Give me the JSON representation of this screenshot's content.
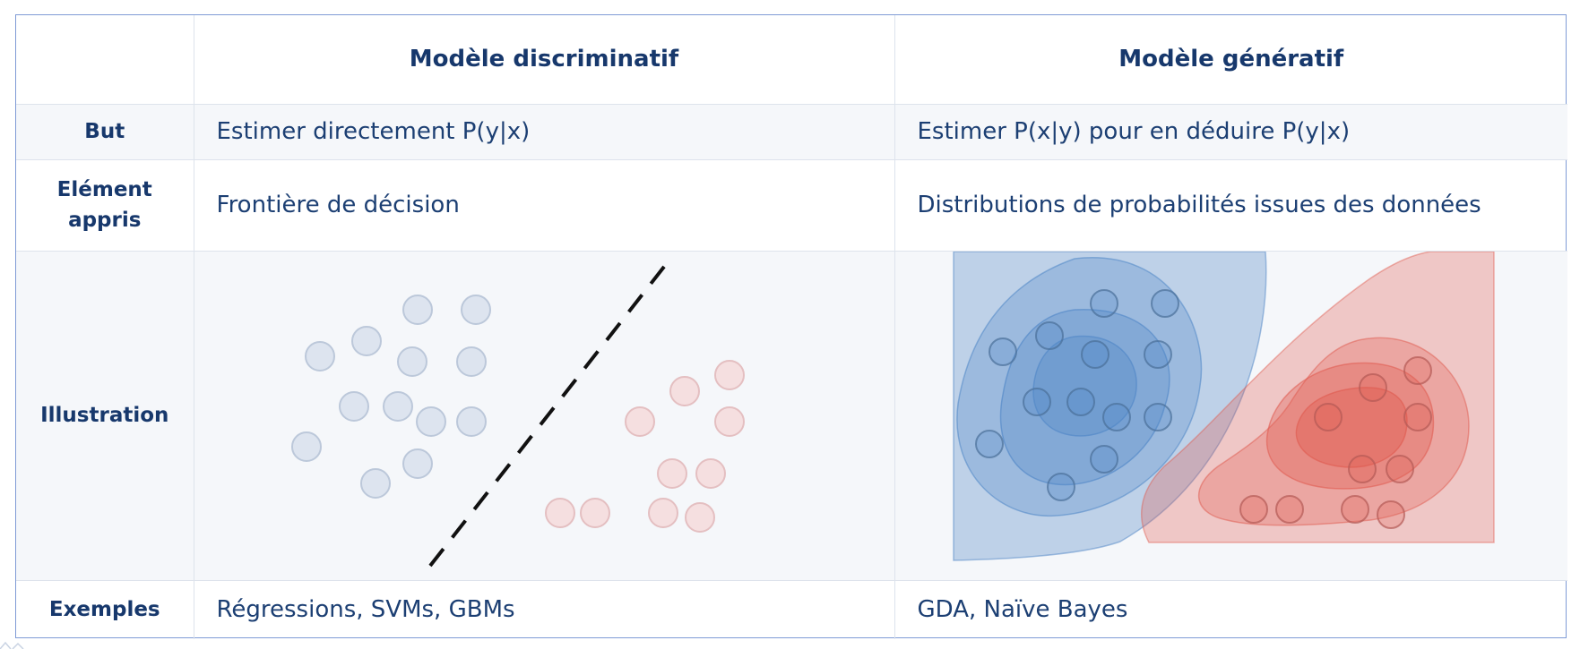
{
  "table": {
    "header": {
      "corner": "",
      "discriminative": "Modèle discriminatif",
      "generative": "Modèle génératif"
    },
    "rows": {
      "goal": {
        "label": "But",
        "discriminative": "Estimer directement P(y|x)",
        "generative": "Estimer P(x|y) pour en déduire P(y|x)"
      },
      "learned": {
        "label_line1": "Elément",
        "label_line2": "appris",
        "discriminative": "Frontière de décision",
        "generative": "Distributions de probabilités issues des données"
      },
      "illustration": {
        "label": "Illustration"
      },
      "examples": {
        "label": "Exemples",
        "discriminative": "Régressions, SVMs, GBMs",
        "generative": "GDA, Naïve Bayes"
      }
    }
  },
  "illustration_colors": {
    "blue_point_fill": "#dde4ef",
    "blue_point_stroke": "#bcc8da",
    "red_point_fill": "#f5dfe0",
    "red_point_stroke": "#e4bfc1",
    "boundary": "#111111",
    "blue_region": "#4f86c6",
    "red_region": "#e05a4e"
  },
  "icons": {
    "decision_boundary": "dashed-line-icon",
    "data_points": "circle-icon",
    "density_contours": "contour-icon"
  }
}
